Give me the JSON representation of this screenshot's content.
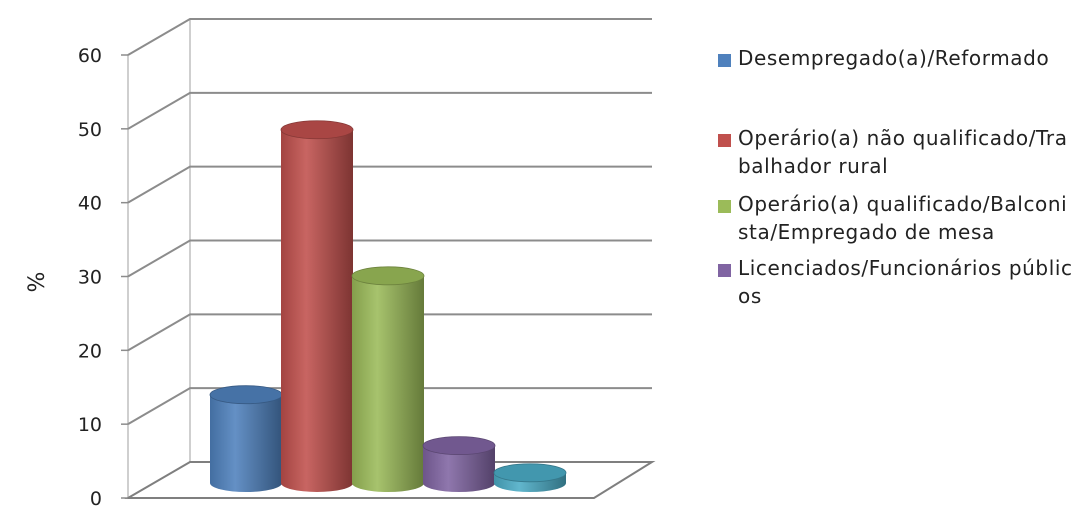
{
  "chart_data": {
    "type": "bar",
    "title": "",
    "xlabel": "",
    "ylabel": "%",
    "ylim": [
      0,
      60
    ],
    "yticks": [
      "0",
      "10",
      "20",
      "30",
      "40",
      "50",
      "60"
    ],
    "grid": true,
    "legend_position": "right",
    "categories": [
      "Desempregado(a)/Reformado",
      "Operário(a) não qualificado/Trabalhador rural",
      "Operário(a) qualificado/Balconista/Empregado de mesa",
      "Licenciados/Funcionários públicos",
      ""
    ],
    "values": [
      13,
      52,
      30.5,
      5.5,
      1.5
    ],
    "colors": [
      "#4F81BD",
      "#C0504D",
      "#9BBB59",
      "#8064A2",
      "#4BACC6"
    ]
  },
  "legend": [
    {
      "label": "Desempregado(a)/Reformado",
      "color": "#4F81BD"
    },
    {
      "label": "Operário(a) não qualificado/Trabalhador rural",
      "color": "#C0504D"
    },
    {
      "label": "Operário(a) qualificado/Balconista/Empregado de mesa",
      "color": "#9BBB59"
    },
    {
      "label": "Licenciados/Funcionários públicos",
      "color": "#8064A2"
    }
  ]
}
